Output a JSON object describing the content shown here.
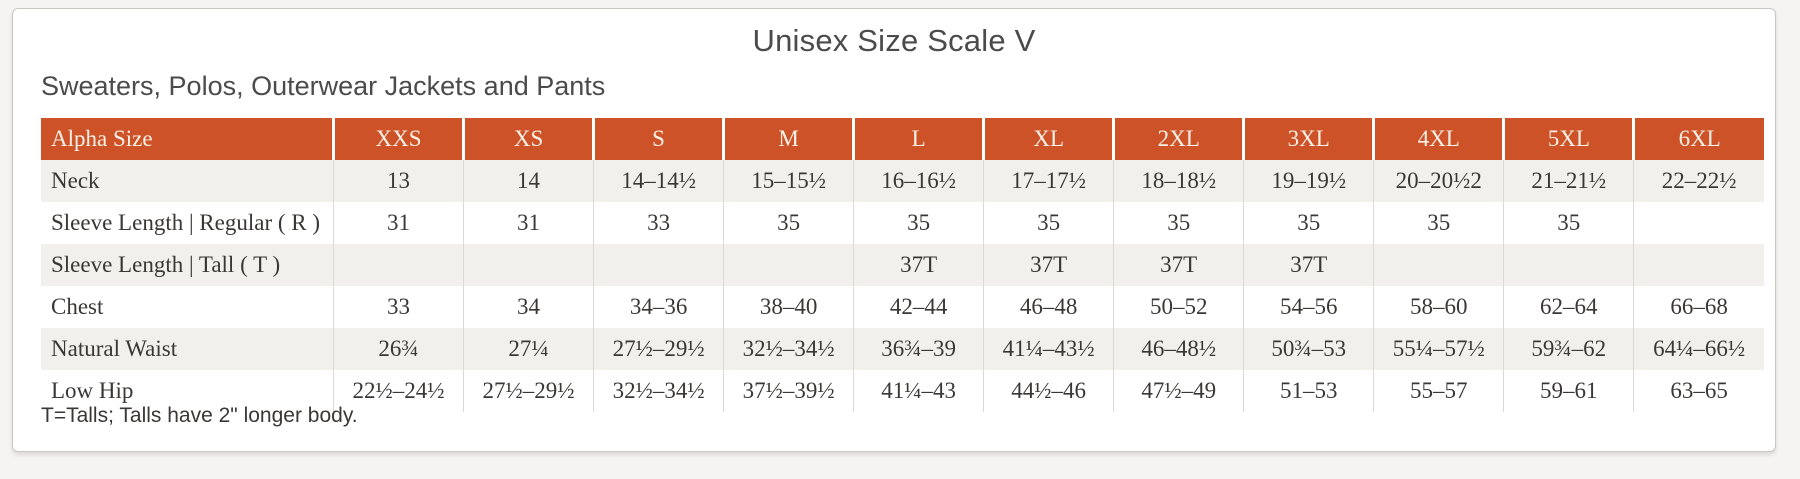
{
  "page": {
    "title": "Unisex Size Scale V",
    "subtitle": "Sweaters, Polos, Outerwear Jackets and Pants",
    "footnote": "T=Talls; Talls have 2\" longer body."
  },
  "colors": {
    "page_bg": "#f5f4f2",
    "card_border": "#cac7c2",
    "header_bg": "#ce5227",
    "header_text": "#f8f1e7",
    "stripe_bg": "#f2f0ed",
    "grid_line": "#dcd8d3",
    "body_text": "#3a3836",
    "title_text": "#4b4b4b"
  },
  "table": {
    "columns": [
      "Alpha Size",
      "XXS",
      "XS",
      "S",
      "M",
      "L",
      "XL",
      "2XL",
      "3XL",
      "4XL",
      "5XL",
      "6XL"
    ],
    "rows": [
      {
        "label": "Neck",
        "striped": true,
        "values": [
          "13",
          "14",
          "14–14½",
          "15–15½",
          "16–16½",
          "17–17½",
          "18–18½",
          "19–19½",
          "20–20½2",
          "21–21½",
          "22–22½"
        ]
      },
      {
        "label": "Sleeve Length | Regular ( R )",
        "striped": false,
        "values": [
          "31",
          "31",
          "33",
          "35",
          "35",
          "35",
          "35",
          "35",
          "35",
          "35",
          ""
        ]
      },
      {
        "label": "Sleeve Length | Tall ( T )",
        "striped": true,
        "values": [
          "",
          "",
          "",
          "",
          "37T",
          "37T",
          "37T",
          "37T",
          "",
          "",
          ""
        ]
      },
      {
        "label": "Chest",
        "striped": false,
        "values": [
          "33",
          "34",
          "34–36",
          "38–40",
          "42–44",
          "46–48",
          "50–52",
          "54–56",
          "58–60",
          "62–64",
          "66–68"
        ]
      },
      {
        "label": "Natural Waist",
        "striped": true,
        "values": [
          "26¾",
          "27¼",
          "27½–29½",
          "32½–34½",
          "36¾–39",
          "41¼–43½",
          "46–48½",
          "50¾–53",
          "55¼–57½",
          "59¾–62",
          "64¼–66½"
        ]
      },
      {
        "label": "Low Hip",
        "striped": false,
        "values": [
          "22½–24½",
          "27½–29½",
          "32½–34½",
          "37½–39½",
          "41¼–43",
          "44½–46",
          "47½–49",
          "51–53",
          "55–57",
          "59–61",
          "63–65"
        ]
      }
    ]
  }
}
